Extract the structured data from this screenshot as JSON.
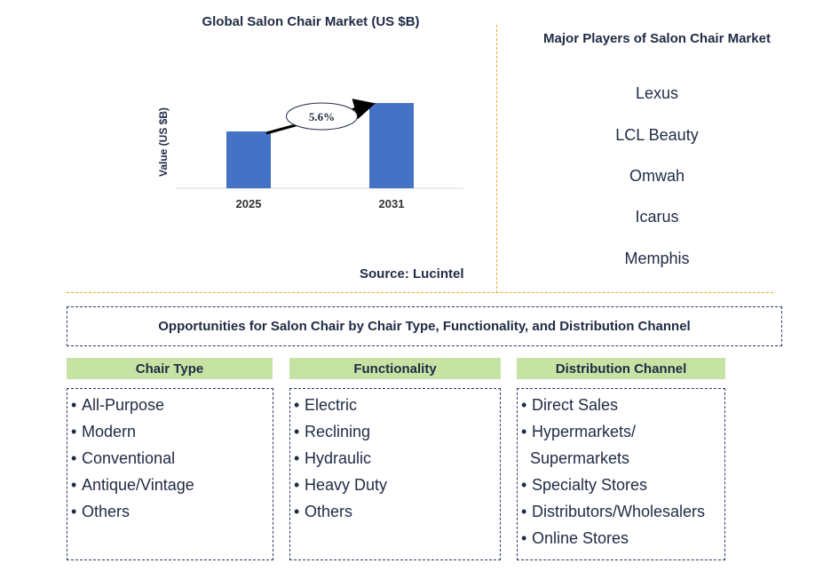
{
  "chart_data": {
    "type": "bar",
    "title": "Global Salon Chair Market (US $B)",
    "ylabel": "Value (US $B)",
    "xlabel": "",
    "categories": [
      "2025",
      "2031"
    ],
    "values": [
      1.0,
      1.5
    ],
    "ylim": [
      0,
      1.5
    ],
    "annotation": {
      "label": "5.6%",
      "from": "2025",
      "to": "2031"
    },
    "grid": false,
    "colors": {
      "bar": "#4472c4",
      "axis": "#d9d9d9",
      "arrow": "#000000"
    }
  },
  "source": "Source: Lucintel",
  "players": {
    "title": "Major Players of Salon Chair Market",
    "items": [
      "Lexus",
      "LCL Beauty",
      "Omwah",
      "Icarus",
      "Memphis"
    ]
  },
  "opportunities": {
    "title": "Opportunities for Salon Chair by Chair Type, Functionality, and Distribution Channel"
  },
  "columns": [
    {
      "header": "Chair Type",
      "items": [
        [
          "All-Purpose"
        ],
        [
          "Modern"
        ],
        [
          "Conventional"
        ],
        [
          "Antique/Vintage"
        ],
        [
          "Others"
        ]
      ]
    },
    {
      "header": "Functionality",
      "items": [
        [
          "Electric"
        ],
        [
          "Reclining"
        ],
        [
          "Hydraulic"
        ],
        [
          "Heavy Duty"
        ],
        [
          "Others"
        ]
      ]
    },
    {
      "header": "Distribution Channel",
      "items": [
        [
          "Direct Sales"
        ],
        [
          "Hypermarkets/",
          "Supermarkets"
        ],
        [
          "Specialty Stores"
        ],
        [
          "Distributors/Wholesalers"
        ],
        [
          "Online Stores"
        ]
      ]
    }
  ],
  "colors": {
    "header_bg": "#c6e3a4",
    "divider": "#f0a830",
    "text": "#1f2a44"
  }
}
